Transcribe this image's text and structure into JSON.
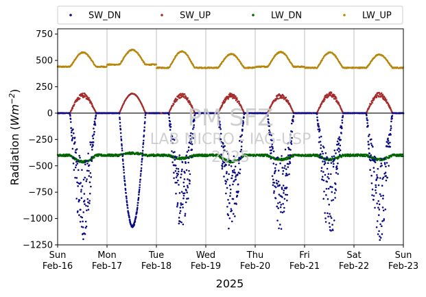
{
  "chart_data": {
    "type": "scatter",
    "xlabel": "2025",
    "ylabel_main": "Radiation (",
    "ylabel_unit_base": "Wm",
    "ylabel_unit_exp": "−2",
    "ylabel_close": ")",
    "ylim": [
      -1250,
      800
    ],
    "y_ticks": [
      -1250,
      -1000,
      -750,
      -500,
      -250,
      0,
      250,
      500,
      750
    ],
    "y_tick_labels": [
      "−1250",
      "−1000",
      "−750",
      "−500",
      "−250",
      "0",
      "250",
      "500",
      "750"
    ],
    "x_range_days": [
      "2025-02-16",
      "2025-02-23"
    ],
    "x_ticks": [
      {
        "day": "Sun",
        "date": "Feb-16"
      },
      {
        "day": "Mon",
        "date": "Feb-17"
      },
      {
        "day": "Tue",
        "date": "Feb-18"
      },
      {
        "day": "Wed",
        "date": "Feb-19"
      },
      {
        "day": "Thu",
        "date": "Feb-20"
      },
      {
        "day": "Fri",
        "date": "Feb-21"
      },
      {
        "day": "Sat",
        "date": "Feb-22"
      },
      {
        "day": "Sun",
        "date": "Feb-23"
      }
    ],
    "grid": "vertical",
    "zero_line": true,
    "legend_position": "top",
    "series": [
      {
        "name": "SW_DN",
        "color": "#0a0a82",
        "daily_minimum": [
          -1200,
          -1075,
          -1130,
          -1150,
          -1150,
          -1180,
          -1225
        ],
        "night_value": 0
      },
      {
        "name": "SW_UP",
        "color": "#a52a2a",
        "daily_peak": [
          190,
          185,
          190,
          190,
          190,
          200,
          200
        ],
        "night_value": 0
      },
      {
        "name": "LW_DN",
        "color": "#006400",
        "baseline": -400,
        "daily_values": [
          -460,
          -380,
          -430,
          -460,
          -440,
          -440,
          -440
        ]
      },
      {
        "name": "LW_UP",
        "color": "#b8860b",
        "daily_peak": [
          575,
          600,
          585,
          560,
          580,
          575,
          555
        ],
        "night_values": [
          440,
          460,
          430,
          430,
          440,
          430,
          430
        ]
      }
    ],
    "watermark": {
      "line1": "PM SFZ",
      "line2": "LAB MICRO - IAG-USP",
      "line3": "2025"
    }
  }
}
